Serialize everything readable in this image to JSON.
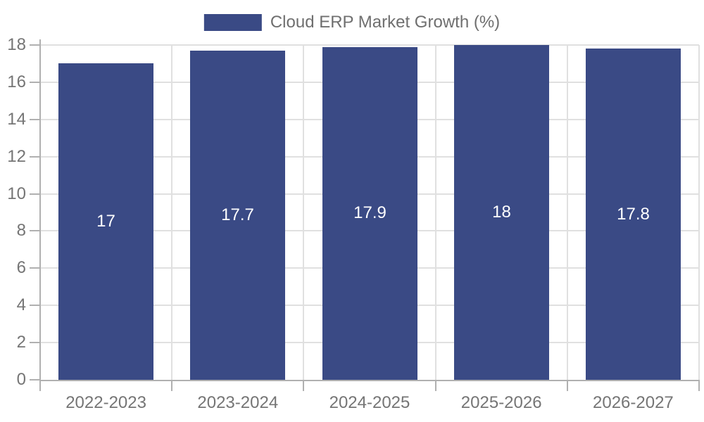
{
  "chart_data": {
    "type": "bar",
    "title": "Cloud ERP Market Growth (%)",
    "legend": [
      "Cloud ERP Market Growth (%)"
    ],
    "legend_position": "top",
    "categories": [
      "2022-2023",
      "2023-2024",
      "2024-2025",
      "2025-2026",
      "2026-2027"
    ],
    "values": [
      17,
      17.7,
      17.9,
      18,
      17.8
    ],
    "value_labels": [
      "17",
      "17.7",
      "17.9",
      "18",
      "17.8"
    ],
    "xlabel": "",
    "ylabel": "",
    "ylim": [
      0,
      18
    ],
    "ytick_step": 2,
    "grid": true,
    "colors": {
      "bar": "#3A4A85",
      "value_label": "#ffffff",
      "axis_label": "#757575",
      "legend_text": "#6f6f6f",
      "grid_line": "#e0e0e0",
      "axis_line": "#b0b0b0",
      "background": "#ffffff"
    }
  }
}
